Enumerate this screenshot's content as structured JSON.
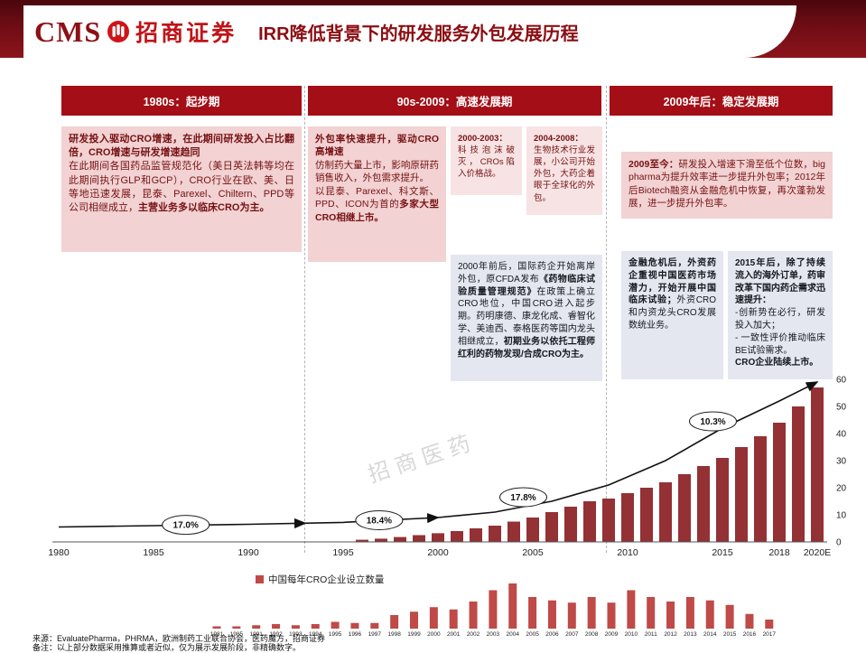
{
  "header": {
    "logo_cms": "CMS",
    "logo_brand": "招商证券",
    "title": "IRR降低背景下的研发服务外包发展历程"
  },
  "timeline": {
    "periods": [
      {
        "label": "1980s：起步期"
      },
      {
        "label": "90s-2009：高速发展期"
      },
      {
        "label": "2009年后：稳定发展期"
      }
    ]
  },
  "boxes": {
    "startup": [
      {
        "text": "研发投入驱动CRO增速，在此期间研发投入占比翻倍，CRO增速与研发增速趋同",
        "bold": true
      },
      {
        "text": "在此期间各国药品监管规范化（美日英法韩等均在此期间执行GLP和GCP），CRO行业在欧、美、日等地迅速发展，昆泰、Parexel、Chiltern、PPD等公司相继成立，",
        "br": true
      },
      {
        "text": "主营业务多以临床CRO为主。",
        "bold": true
      }
    ],
    "rapid_main": [
      {
        "text": "外包率快速提升，驱动CRO高增速",
        "bold": true
      },
      {
        "text": "仿制药大量上市，影响原研药销售收入，外包需求提升。",
        "br": true
      },
      {
        "text": "以昆泰、Parexel、科文斯、PPD、ICON为首的",
        "br": true
      },
      {
        "text": "多家大型CRO相继上市。",
        "bold": true
      }
    ],
    "bubble": [
      {
        "text": "2000-2003：",
        "bold": true
      },
      {
        "text": "科技泡沫破灭，CROs陷入价格战。",
        "br": true
      }
    ],
    "biotech": [
      {
        "text": "2004-2008：",
        "bold": true
      },
      {
        "text": "生物技术行业发展，小公司开始外包，大药企着眼于全球化的外包。",
        "br": true
      }
    ],
    "china_start": [
      {
        "text": "2000年前后，国际药企开始离岸外包，原CFDA发布"
      },
      {
        "text": "《药物临床试验质量管理规范》",
        "bold": true
      },
      {
        "text": "在政策上确立CRO地位，中国CRO进入起步期。药明康德、康龙化成、睿智化学、美迪西、泰格医药等国内龙头相继成立，"
      },
      {
        "text": "初期业务以依托工程师红利的药物发现/合成CRO为主。",
        "bold": true
      }
    ],
    "stable_main": [
      {
        "text": "2009至今：",
        "bold": true
      },
      {
        "text": "研发投入增速下滑至低个位数，big pharma为提升效率进一步提升外包率；2012年后Biotech融资从金融危机中恢复，再次蓬勃发展，进一步提升外包率。"
      }
    ],
    "china_market": [
      {
        "text": "金融危机后，外资药企重视中国医药市场潜力，开始开展中国临床试验；",
        "bold": true
      },
      {
        "text": "外资CRO和内资龙头CRO发展数统业务。"
      }
    ],
    "post2015": [
      {
        "text": "2015年后，除了持续流入的海外订单，药审改革下国内药企需求迅速提升：",
        "bold": true
      },
      {
        "text": "-创新势在必行，研发投入加大；",
        "br": true
      },
      {
        "text": "- 一致性评价推动临床BE试验需求。",
        "br": true
      },
      {
        "text": "CRO企业陆续上市。",
        "bold": true,
        "br": true
      }
    ]
  },
  "colors": {
    "accent": "#a40e16",
    "bar_main": "#943134",
    "bar_mini": "#bf4a47",
    "pink": "#f2d2d2",
    "blue": "#e4e6f0"
  },
  "chart_data": [
    {
      "type": "bar",
      "name": "global-cro-market-trend",
      "ylim": [
        0,
        60
      ],
      "axis_right_ticks": [
        60,
        50,
        40,
        30,
        20,
        10,
        0
      ],
      "x_ticks": [
        {
          "label": "1980",
          "year": 1980
        },
        {
          "label": "1985",
          "year": 1985
        },
        {
          "label": "1990",
          "year": 1990
        },
        {
          "label": "1995",
          "year": 1995
        },
        {
          "label": "2000",
          "year": 2000
        },
        {
          "label": "2005",
          "year": 2005
        },
        {
          "label": "2010",
          "year": 2010
        },
        {
          "label": "2015",
          "year": 2015
        },
        {
          "label": "2018",
          "year": 2018
        },
        {
          "label": "2020E",
          "year": 2020
        }
      ],
      "bar_years": [
        1996,
        1997,
        1998,
        1999,
        2000,
        2001,
        2002,
        2003,
        2004,
        2005,
        2006,
        2007,
        2008,
        2009,
        2010,
        2011,
        2012,
        2013,
        2014,
        2015,
        2016,
        2017,
        2018,
        2019,
        2020
      ],
      "bar_values": [
        0.8,
        1.2,
        1.8,
        2.5,
        3.2,
        4,
        5,
        6,
        7.5,
        9,
        11,
        13,
        15,
        16,
        18,
        20,
        22,
        25,
        28,
        31,
        35,
        39,
        44,
        50,
        57
      ],
      "line_points": [
        [
          1980,
          5.5
        ],
        [
          1985,
          6
        ],
        [
          1990,
          6.5
        ],
        [
          1995,
          7.2
        ],
        [
          2000,
          9
        ],
        [
          2003,
          11
        ],
        [
          2006,
          15
        ],
        [
          2009,
          21
        ],
        [
          2012,
          30
        ],
        [
          2015,
          42
        ],
        [
          2018,
          52
        ],
        [
          2020,
          59
        ]
      ],
      "arrow_years": [
        1993,
        2000,
        2020
      ],
      "growth_labels": [
        {
          "text": "17.0%",
          "year": 1986.7,
          "value": 6.3
        },
        {
          "text": "18.4%",
          "year": 1996.9,
          "value": 8
        },
        {
          "text": "17.8%",
          "year": 2004.5,
          "value": 16.5
        },
        {
          "text": "10.3%",
          "year": 2014.5,
          "value": 44.5
        }
      ],
      "watermark": "招商医药"
    },
    {
      "type": "bar",
      "name": "china-cro-companies-founded-per-year",
      "legend": "中国每年CRO企业设立数量",
      "categories": [
        "1981",
        "1985",
        "1991",
        "1992",
        "1993",
        "1994",
        "1995",
        "1996",
        "1997",
        "1998",
        "1999",
        "2000",
        "2001",
        "2002",
        "2003",
        "2004",
        "2005",
        "2006",
        "2007",
        "2008",
        "2009",
        "2010",
        "2011",
        "2012",
        "2013",
        "2014",
        "2015",
        "2016",
        "2017"
      ],
      "values": [
        2,
        2,
        3,
        4,
        3,
        4,
        6,
        5,
        5,
        12,
        15,
        19,
        17,
        24,
        34,
        40,
        28,
        25,
        23,
        28,
        23,
        34,
        28,
        24,
        28,
        25,
        21,
        13,
        8
      ]
    }
  ],
  "footer": {
    "source": "来源：EvaluatePharma，PHRMA，欧洲制药工业联合协会，医药魔方，招商证券",
    "note": "备注：以上部分数据采用推算或者近似，仅为展示发展阶段，非精确数字。"
  }
}
